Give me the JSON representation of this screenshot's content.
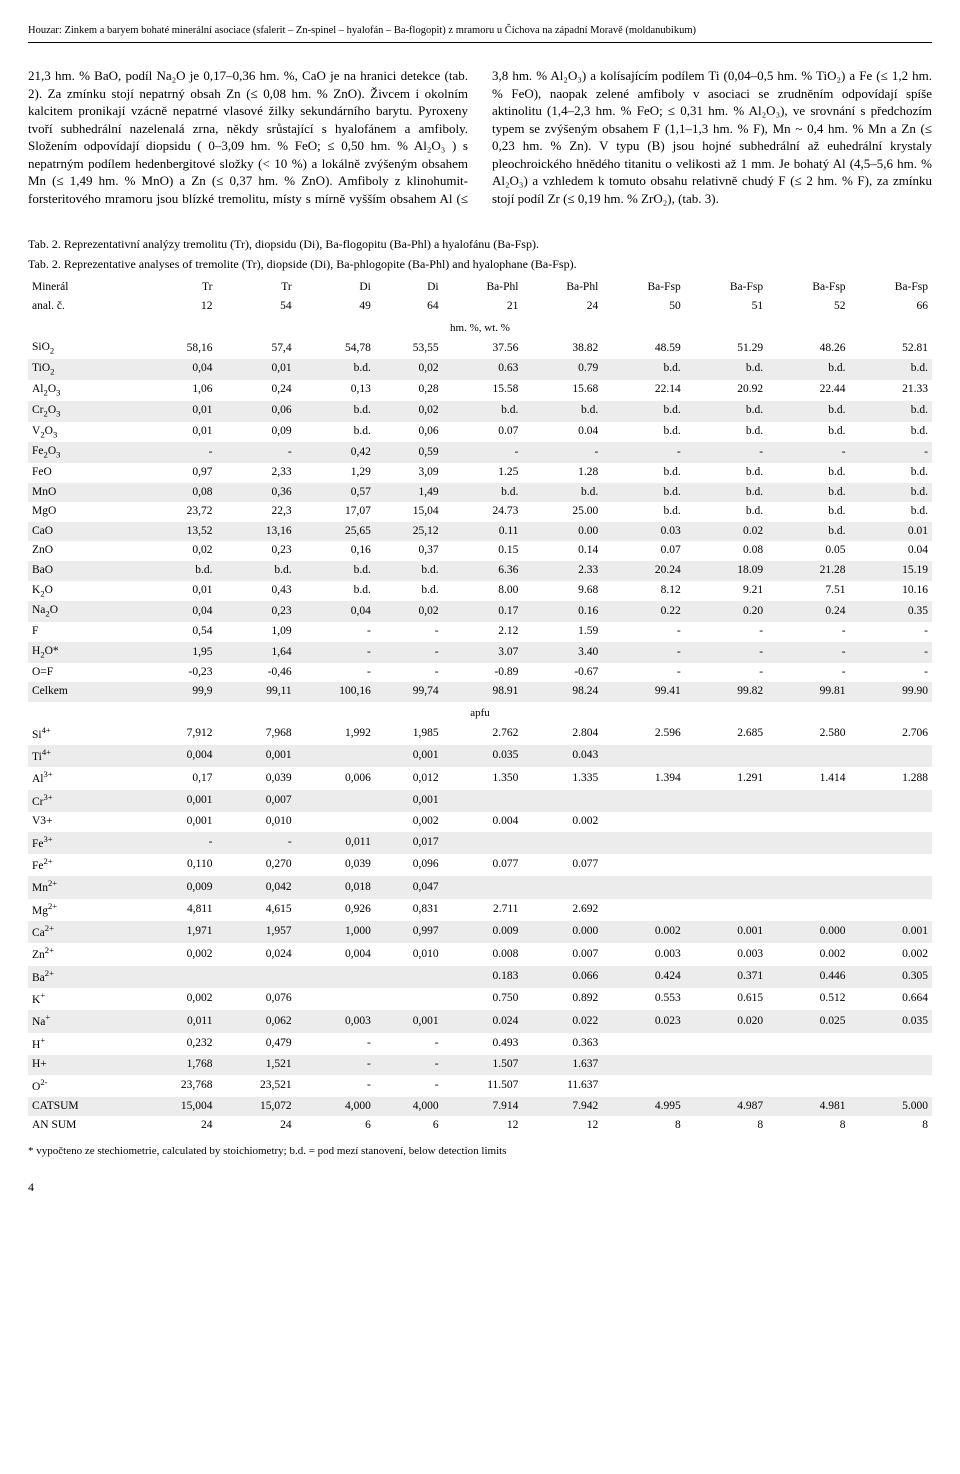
{
  "running_head": "Houzar: Zinkem a baryem bohaté minerální asociace (sfalerit – Zn-spinel – hyalofán – Ba-flogopit) z mramoru u Číchova na západní Moravě (moldanubikum)",
  "body_paragraph": "21,3 hm. % BaO, podíl Na₂O je 0,17–0,36 hm. %, CaO je na hranici detekce (tab. 2). Za zmínku stojí nepatrný obsah Zn (≤ 0,08 hm. % ZnO). Živcem i okolním kalcitem pronikají vzácně nepatrné vlasové žilky sekundárního barytu. Pyroxeny tvoří subhedrální nazelenalá zrna, někdy srůstající s hyalofánem a amfiboly. Složením odpovídají diopsidu ( 0–3,09 hm. % FeO; ≤ 0,50 hm. % Al₂O₃ ) s nepatrným podílem hedenbergitové složky (< 10 %) a lokálně zvýšeným obsahem Mn (≤ 1,49 hm. % MnO) a Zn (≤ 0,37 hm. % ZnO). Amfiboly z klinohumit-forsteritového mramoru jsou blízké tremolitu, místy s mírně vyšším obsahem Al (≤ 3,8 hm. % Al₂O₃) a kolísajícím podílem Ti (0,04–0,5 hm. % TiO₂) a Fe (≤ 1,2 hm. % FeO), naopak zelené amfiboly v asociaci se zrudněním odpovídají spíše aktinolitu (1,4–2,3 hm. % FeO; ≤ 0,31 hm. % Al₂O₃), ve srovnání s předchozím typem se zvýšeným obsahem F (1,1–1,3 hm. % F), Mn ~ 0,4 hm. % Mn a Zn (≤ 0,23 hm. % Zn). V typu (B) jsou hojné subhedrální až euhedrální krystaly pleochroického hnědého titanitu o velikosti až 1 mm. Je bohatý Al (4,5–5,6 hm. % Al₂O₃) a vzhledem k tomuto obsahu relativně chudý F (≤ 2 hm. % F), za zmínku stojí podíl Zr (≤ 0,19 hm. % ZrO₂), (tab. 3).",
  "caption_cz": "Tab. 2. Reprezentativní analýzy tremolitu (Tr), diopsidu (Di), Ba-flogopitu (Ba-Phl) a hyalofánu (Ba-Fsp).",
  "caption_en": "Tab. 2. Reprezentative analyses of tremolite (Tr), diopside (Di), Ba-phlogopite (Ba-Phl) and hyalophane (Ba-Fsp).",
  "table": {
    "header1": [
      "Minerál",
      "Tr",
      "Tr",
      "Di",
      "Di",
      "Ba-Phl",
      "Ba-Phl",
      "Ba-Fsp",
      "Ba-Fsp",
      "Ba-Fsp",
      "Ba-Fsp"
    ],
    "header2": [
      "anal. č.",
      "12",
      "54",
      "49",
      "64",
      "21",
      "24",
      "50",
      "51",
      "52",
      "66"
    ],
    "section1": "hm. %, wt. %",
    "rows1": [
      [
        "SiO₂",
        "58,16",
        "57,4",
        "54,78",
        "53,55",
        "37.56",
        "38.82",
        "48.59",
        "51.29",
        "48.26",
        "52.81"
      ],
      [
        "TiO₂",
        "0,04",
        "0,01",
        "b.d.",
        "0,02",
        "0.63",
        "0.79",
        "b.d.",
        "b.d.",
        "b.d.",
        "b.d."
      ],
      [
        "Al₂O₃",
        "1,06",
        "0,24",
        "0,13",
        "0,28",
        "15.58",
        "15.68",
        "22.14",
        "20.92",
        "22.44",
        "21.33"
      ],
      [
        "Cr₂O₃",
        "0,01",
        "0,06",
        "b.d.",
        "0,02",
        "b.d.",
        "b.d.",
        "b.d.",
        "b.d.",
        "b.d.",
        "b.d."
      ],
      [
        "V₂O₃",
        "0,01",
        "0,09",
        "b.d.",
        "0,06",
        "0.07",
        "0.04",
        "b.d.",
        "b.d.",
        "b.d.",
        "b.d."
      ],
      [
        "Fe₂O₃",
        "-",
        "-",
        "0,42",
        "0,59",
        "-",
        "-",
        "-",
        "-",
        "-",
        "-"
      ],
      [
        "FeO",
        "0,97",
        "2,33",
        "1,29",
        "3,09",
        "1.25",
        "1.28",
        "b.d.",
        "b.d.",
        "b.d.",
        "b.d."
      ],
      [
        "MnO",
        "0,08",
        "0,36",
        "0,57",
        "1,49",
        "b.d.",
        "b.d.",
        "b.d.",
        "b.d.",
        "b.d.",
        "b.d."
      ],
      [
        "MgO",
        "23,72",
        "22,3",
        "17,07",
        "15,04",
        "24.73",
        "25.00",
        "b.d.",
        "b.d.",
        "b.d.",
        "b.d."
      ],
      [
        "CaO",
        "13,52",
        "13,16",
        "25,65",
        "25,12",
        "0.11",
        "0.00",
        "0.03",
        "0.02",
        "b.d.",
        "0.01"
      ],
      [
        "ZnO",
        "0,02",
        "0,23",
        "0,16",
        "0,37",
        "0.15",
        "0.14",
        "0.07",
        "0.08",
        "0.05",
        "0.04"
      ],
      [
        "BaO",
        "b.d.",
        "b.d.",
        "b.d.",
        "b.d.",
        "6.36",
        "2.33",
        "20.24",
        "18.09",
        "21.28",
        "15.19"
      ],
      [
        "K₂O",
        "0,01",
        "0,43",
        "b.d.",
        "b.d.",
        "8.00",
        "9.68",
        "8.12",
        "9.21",
        "7.51",
        "10.16"
      ],
      [
        "Na₂O",
        "0,04",
        "0,23",
        "0,04",
        "0,02",
        "0.17",
        "0.16",
        "0.22",
        "0.20",
        "0.24",
        "0.35"
      ],
      [
        "F",
        "0,54",
        "1,09",
        "-",
        "-",
        "2.12",
        "1.59",
        "-",
        "-",
        "-",
        "-"
      ],
      [
        "H₂O*",
        "1,95",
        "1,64",
        "-",
        "-",
        "3.07",
        "3.40",
        "-",
        "-",
        "-",
        "-"
      ],
      [
        "O=F",
        "-0,23",
        "-0,46",
        "-",
        "-",
        "-0.89",
        "-0.67",
        "-",
        "-",
        "-",
        "-"
      ],
      [
        "Celkem",
        "99,9",
        "99,11",
        "100,16",
        "99,74",
        "98.91",
        "98.24",
        "99.41",
        "99.82",
        "99.81",
        "99.90"
      ]
    ],
    "section2": "apfu",
    "rows2": [
      [
        "Si⁴⁺",
        "7,912",
        "7,968",
        "1,992",
        "1,985",
        "2.762",
        "2.804",
        "2.596",
        "2.685",
        "2.580",
        "2.706"
      ],
      [
        "Ti⁴⁺",
        "0,004",
        "0,001",
        "",
        "0,001",
        "0.035",
        "0.043",
        "",
        "",
        "",
        ""
      ],
      [
        "Al³⁺",
        "0,17",
        "0,039",
        "0,006",
        "0,012",
        "1.350",
        "1.335",
        "1.394",
        "1.291",
        "1.414",
        "1.288"
      ],
      [
        "Cr³⁺",
        "0,001",
        "0,007",
        "",
        "0,001",
        "",
        "",
        "",
        "",
        "",
        ""
      ],
      [
        "V3+",
        "0,001",
        "0,010",
        "",
        "0,002",
        "0.004",
        "0.002",
        "",
        "",
        "",
        ""
      ],
      [
        "Fe³⁺",
        "-",
        "-",
        "0,011",
        "0,017",
        "",
        "",
        "",
        "",
        "",
        ""
      ],
      [
        "Fe²⁺",
        "0,110",
        "0,270",
        "0,039",
        "0,096",
        "0.077",
        "0.077",
        "",
        "",
        "",
        ""
      ],
      [
        "Mn²⁺",
        "0,009",
        "0,042",
        "0,018",
        "0,047",
        "",
        "",
        "",
        "",
        "",
        ""
      ],
      [
        "Mg²⁺",
        "4,811",
        "4,615",
        "0,926",
        "0,831",
        "2.711",
        "2.692",
        "",
        "",
        "",
        ""
      ],
      [
        "Ca²⁺",
        "1,971",
        "1,957",
        "1,000",
        "0,997",
        "0.009",
        "0.000",
        "0.002",
        "0.001",
        "0.000",
        "0.001"
      ],
      [
        "Zn²⁺",
        "0,002",
        "0,024",
        "0,004",
        "0,010",
        "0.008",
        "0.007",
        "0.003",
        "0.003",
        "0.002",
        "0.002"
      ],
      [
        "Ba²⁺",
        "",
        "",
        "",
        "",
        "0.183",
        "0.066",
        "0.424",
        "0.371",
        "0.446",
        "0.305"
      ],
      [
        "K⁺",
        "0,002",
        "0,076",
        "",
        "",
        "0.750",
        "0.892",
        "0.553",
        "0.615",
        "0.512",
        "0.664"
      ],
      [
        "Na⁺",
        "0,011",
        "0,062",
        "0,003",
        "0,001",
        "0.024",
        "0.022",
        "0.023",
        "0.020",
        "0.025",
        "0.035"
      ],
      [
        "H⁺",
        "0,232",
        "0,479",
        "-",
        "-",
        "0.493",
        "0.363",
        "",
        "",
        "",
        ""
      ],
      [
        "H+",
        "1,768",
        "1,521",
        "-",
        "-",
        "1.507",
        "1.637",
        "",
        "",
        "",
        ""
      ],
      [
        "O²⁻",
        "23,768",
        "23,521",
        "-",
        "-",
        "11.507",
        "11.637",
        "",
        "",
        "",
        ""
      ],
      [
        "CATSUM",
        "15,004",
        "15,072",
        "4,000",
        "4,000",
        "7.914",
        "7.942",
        "4.995",
        "4.987",
        "4.981",
        "5.000"
      ],
      [
        "AN SUM",
        "24",
        "24",
        "6",
        "6",
        "12",
        "12",
        "8",
        "8",
        "8",
        "8"
      ]
    ]
  },
  "footnote": "* vypočteno ze stechiometrie, calculated by stoichiometry; b.d. = pod mezí stanovení, below detection limits",
  "page_number": "4",
  "colors": {
    "stripe": "#ececec",
    "text": "#000000",
    "background": "#ffffff"
  }
}
